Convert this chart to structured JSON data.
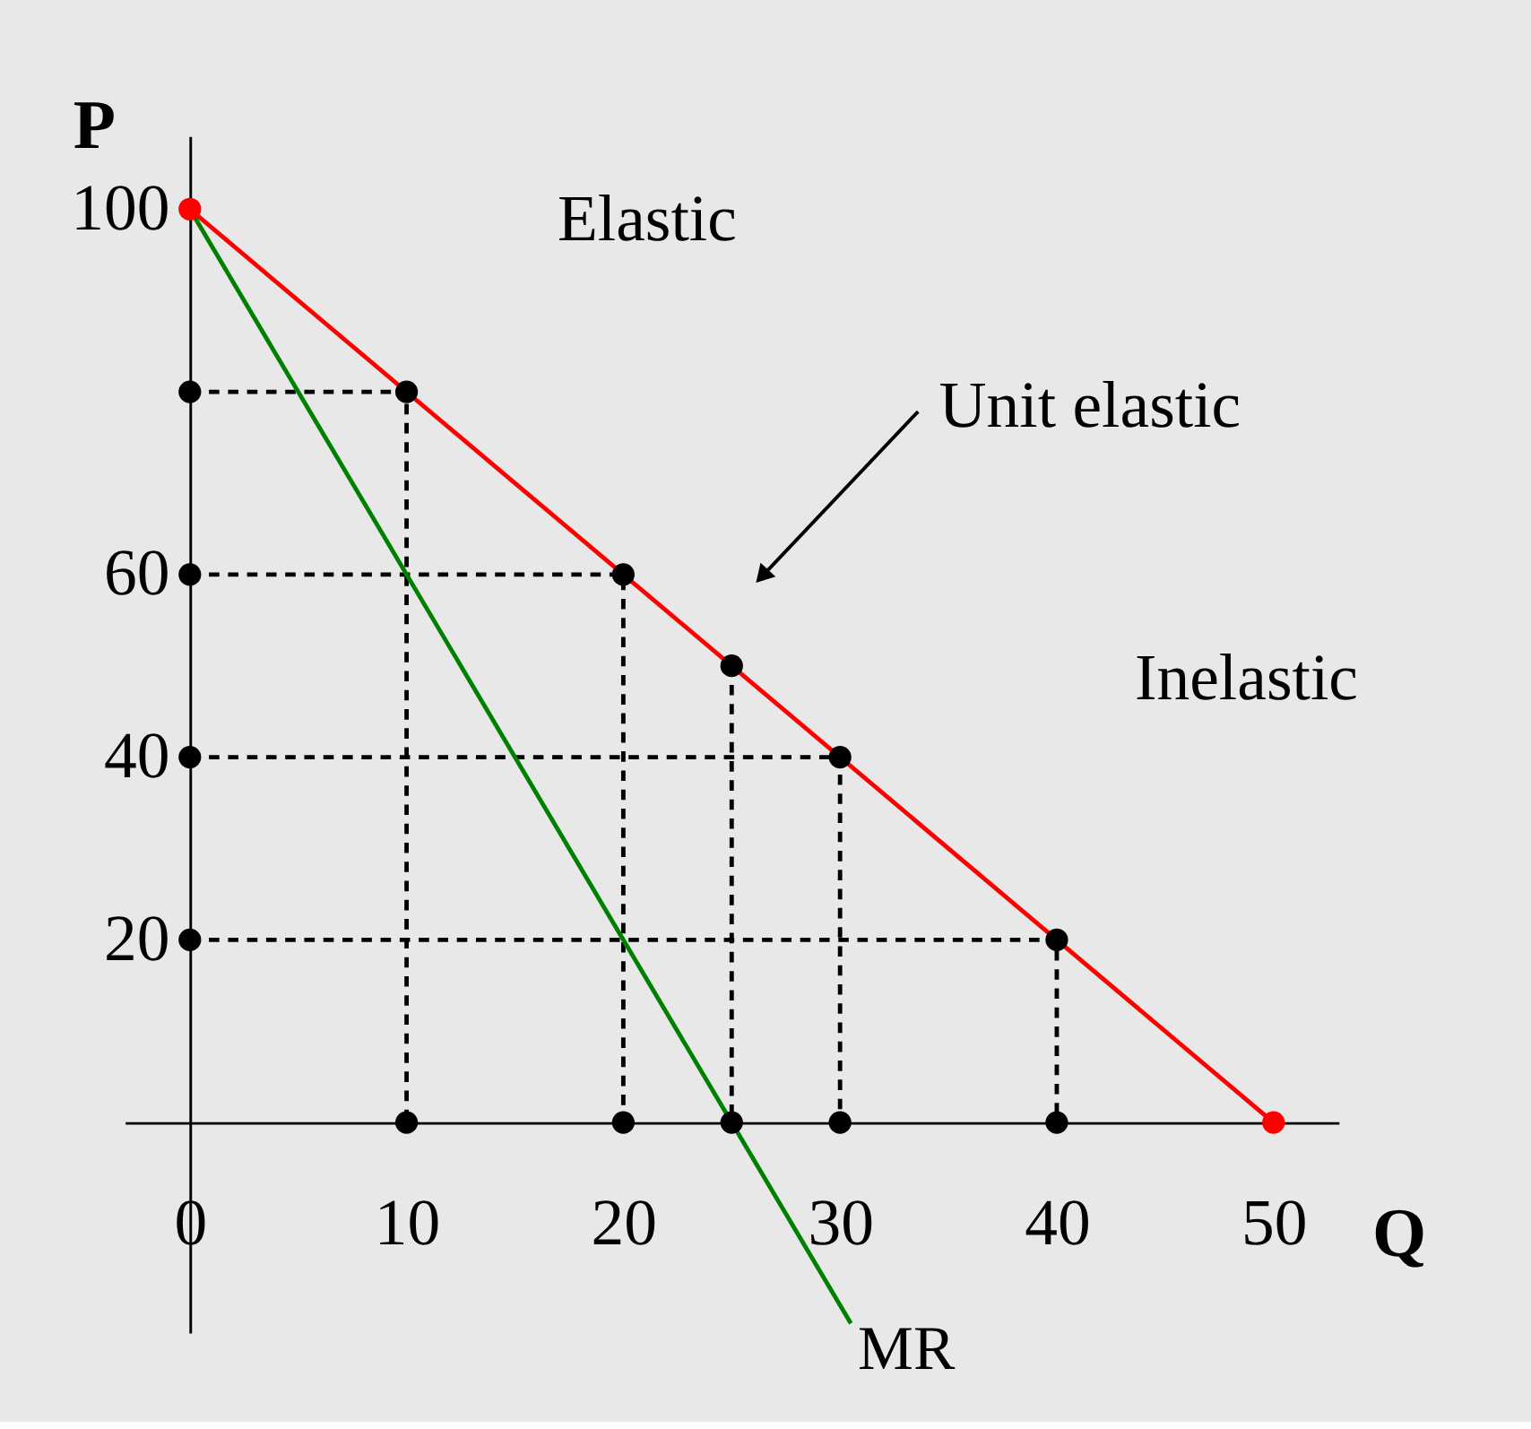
{
  "chart_data": {
    "type": "line",
    "xlabel": "Q",
    "ylabel": "P",
    "xlim": [
      -3,
      53
    ],
    "ylim": [
      -23,
      108
    ],
    "xticks": [
      0,
      10,
      20,
      30,
      40,
      50
    ],
    "yticks": [
      20,
      40,
      60,
      100
    ],
    "grid": false,
    "series": [
      {
        "color": "#000000",
        "line_style": "dashed",
        "x": [
          0,
          10,
          10
        ],
        "values": [
          80,
          80,
          0
        ]
      },
      {
        "color": "#000000",
        "line_style": "dashed",
        "x": [
          0,
          20,
          20
        ],
        "values": [
          60,
          60,
          0
        ]
      },
      {
        "color": "#000000",
        "line_style": "dashed",
        "x": [
          25,
          25
        ],
        "values": [
          50,
          0
        ]
      },
      {
        "color": "#000000",
        "line_style": "dashed",
        "x": [
          0,
          30,
          30
        ],
        "values": [
          40,
          40,
          0
        ]
      },
      {
        "color": "#000000",
        "line_style": "dashed",
        "x": [
          0,
          40,
          40
        ],
        "values": [
          20,
          20,
          0
        ]
      },
      {
        "color": "#ff0000",
        "line_style": "solid",
        "x": [
          0,
          50
        ],
        "values": [
          100,
          0
        ]
      },
      {
        "name": "MR",
        "color": "#008000",
        "line_style": "solid",
        "x": [
          0,
          30.5
        ],
        "values": [
          100,
          -22
        ]
      },
      {
        "type": "scatter",
        "color": "#000000",
        "marker": "circle",
        "x": [
          10,
          20,
          25,
          30,
          40,
          0,
          0,
          0,
          0,
          10,
          20,
          25,
          30,
          40
        ],
        "values": [
          80,
          60,
          50,
          40,
          20,
          80,
          60,
          40,
          20,
          0,
          0,
          0,
          0,
          0
        ]
      },
      {
        "type": "scatter",
        "color": "#ff0000",
        "marker": "circle",
        "x": [
          0,
          50
        ],
        "values": [
          100,
          0
        ]
      }
    ],
    "annotations": [
      "Elastic",
      "Unit elastic",
      "Inelastic"
    ]
  }
}
